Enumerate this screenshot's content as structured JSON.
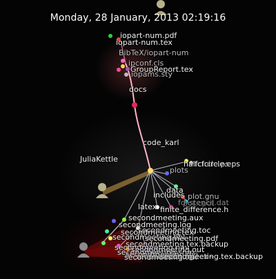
{
  "header": {
    "timestamp": "Monday, 28 January, 2013 02:19:16"
  },
  "colors": {
    "background": "#050505",
    "edge_main": "#ffb3c6",
    "edge_branch": "#d8d8e8",
    "user_avatar": "#b8b18a",
    "user_avatar_dim": "#8c8c8c"
  },
  "users": [
    {
      "name": "",
      "icon": "user-avatar-icon"
    },
    {
      "name": "JuliaKettle",
      "icon": "user-avatar-icon"
    },
    {
      "name": "",
      "icon": "user-avatar-icon"
    }
  ],
  "directories": {
    "docs": "docs",
    "code_karl": "code_karl",
    "plots": "plots",
    "data": "data",
    "includes": "includes",
    "latex": "latex"
  },
  "files": {
    "iopart_num_pdf": "iopart-num.pdf",
    "iopart_num_tex": "iopart-num.tex",
    "bibtex_iopart": "BibTeX/iopart-num",
    "ipconf_cls": "ipconf.cls",
    "group_report": "GroupReport.tex",
    "iopams_sty": "iopams.sty",
    "halfcircle": "halfcircle.ps",
    "fcfcircle": "fcfcircle.eps",
    "plot_gnu": "plot.gnu",
    "pot_cpot": "pot.cpot",
    "fd_stencil": "fd_stencil.dat",
    "finite_difference": "finite_difference.h",
    "sm_aux": "secondmeeting.aux",
    "sm_log": "secondmeeting.log",
    "sm_toc": "secondmeeting.toc",
    "sm_tex": "secondmeeting.tex",
    "sm_bbl": "secondmeeting.bbl",
    "sm_pdf": "secondmeeting.pdf",
    "sm_tex_backup": "secondmeeting.tex.backup",
    "sm_nav": "secondmeeting.nav",
    "sm_out": "secondmeeting.out",
    "sm_snm": "secondmeeting.snm",
    "sm_dvi": "secondmeeting.dvi",
    "sm_tex_tilde": "secondmeeting.tex~",
    "sm_tex_2": "secondmeeting.tex",
    "sm_tex_backup_2": "secondmeeting.tex.backup"
  }
}
